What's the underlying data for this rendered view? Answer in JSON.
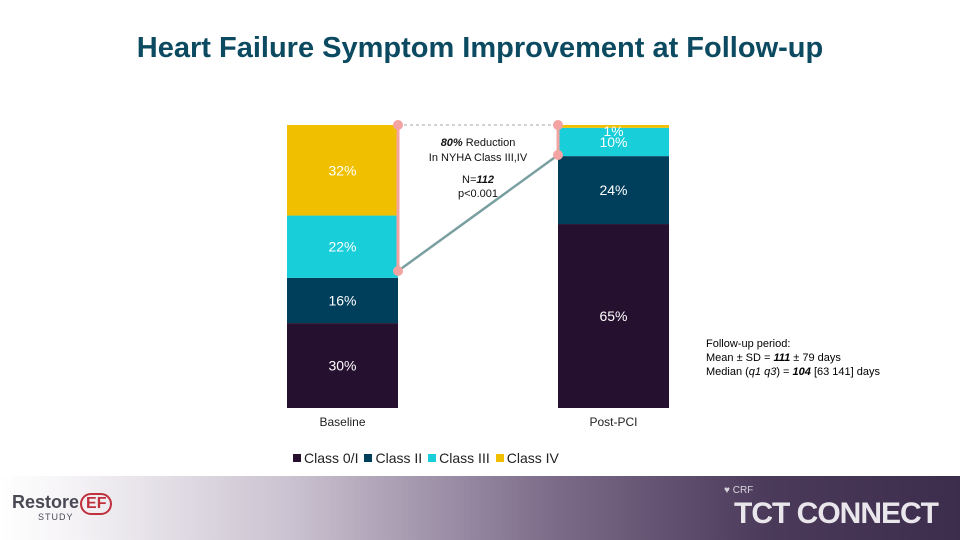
{
  "slide": {
    "title": "Heart Failure Symptom Improvement at Follow-up",
    "logo_left_word": "Restore",
    "logo_left_ef": "EF",
    "logo_left_sub": "STUDY",
    "logo_right_small": "CRF",
    "logo_right_main": "TCT CONNECT"
  },
  "annotation": {
    "reduction_pct": "80%",
    "reduction_text": " Reduction",
    "reduction_line2": "In NYHA Class III,IV",
    "n_label": "N=",
    "n_value": "112",
    "p_value": "p<0.001"
  },
  "followup": {
    "heading": "Follow-up period:",
    "mean_prefix": "Mean ± SD = ",
    "mean_value": "111",
    "mean_suffix": " ± 79 days",
    "median_prefix": "Median (",
    "median_q": "q1 q3",
    "median_mid": ") = ",
    "median_value": "104",
    "median_suffix": " [63 141] days"
  },
  "legend": [
    "Class 0/I",
    "Class II",
    "Class III",
    "Class IV"
  ],
  "colors": {
    "class0": "#26102f",
    "class2": "#003f5c",
    "class3": "#17ced9",
    "class4": "#f0c000",
    "title": "#0b4a60",
    "connector": "#f4a3a3"
  },
  "chart_data": {
    "type": "bar",
    "stacked": true,
    "categories": [
      "Baseline",
      "Post-PCI"
    ],
    "series": [
      {
        "name": "Class 0/I",
        "values": [
          30,
          65
        ],
        "labels": [
          "30%",
          "65%"
        ]
      },
      {
        "name": "Class II",
        "values": [
          16,
          24
        ],
        "labels": [
          "16%",
          "24%"
        ]
      },
      {
        "name": "Class III",
        "values": [
          22,
          10
        ],
        "labels": [
          "22%",
          "10%"
        ]
      },
      {
        "name": "Class IV",
        "values": [
          32,
          1
        ],
        "labels": [
          "32%",
          "1%"
        ]
      }
    ],
    "ylim": [
      0,
      100
    ],
    "legend_position": "bottom"
  }
}
